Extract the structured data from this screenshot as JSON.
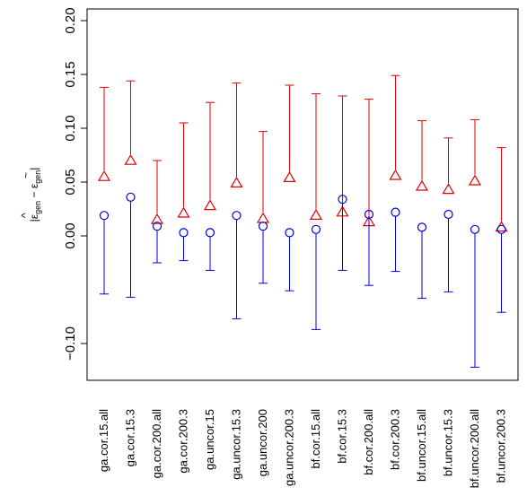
{
  "chart_data": {
    "type": "scatter",
    "title": "",
    "xlabel": "",
    "ylabel": "|ε̂gen − ε̃gen|",
    "ylabel_parts": {
      "open": "|",
      "a": "ε",
      "a_hat": "^",
      "a_sub": "gen",
      "minus": " − ",
      "b": "ε",
      "b_tilde": "~",
      "b_sub": "gen",
      "close": "|"
    },
    "ylim": [
      -0.14,
      0.2
    ],
    "yticks": [
      -0.1,
      0.0,
      0.05,
      0.1,
      0.15,
      0.2
    ],
    "ytick_labels": [
      "−0.10",
      "0.00",
      "0.05",
      "0.10",
      "0.15",
      "0.20"
    ],
    "grid": false,
    "categories": [
      "ga.cor.15.all",
      "ga.cor.15.3",
      "ga.cor.200.all",
      "ga.cor.200.3",
      "ga.uncor.15",
      "ga.uncor.15.3",
      "ga.uncor.200",
      "ga.uncor.200.3",
      "bf.cor.15.all",
      "bf.cor.15.3",
      "bf.cor.200.all",
      "bf.cor.200.3",
      "bf.uncor.15.all",
      "bf.uncor.15.3",
      "bf.uncor.200.all",
      "bf.uncor.200.3"
    ],
    "series": [
      {
        "marker": "triangle",
        "color": "#e00000",
        "values": [
          0.055,
          0.07,
          0.015,
          0.021,
          0.028,
          0.049,
          0.016,
          0.054,
          0.019,
          0.022,
          0.013,
          0.056,
          0.046,
          0.043,
          0.051,
          0.008
        ],
        "upper": [
          0.138,
          0.144,
          0.07,
          0.105,
          0.124,
          0.142,
          0.097,
          0.14,
          0.132,
          0.13,
          0.127,
          0.149,
          0.107,
          0.091,
          0.108,
          0.082
        ]
      },
      {
        "marker": "circle",
        "color": "#0000e0",
        "values": [
          0.019,
          0.036,
          0.009,
          0.003,
          0.003,
          0.019,
          0.009,
          0.003,
          0.006,
          0.034,
          0.02,
          0.022,
          0.008,
          0.02,
          0.006,
          0.006
        ],
        "lower": [
          -0.054,
          -0.057,
          -0.025,
          -0.023,
          -0.032,
          -0.077,
          -0.044,
          -0.051,
          -0.087,
          -0.032,
          -0.046,
          -0.033,
          -0.058,
          -0.052,
          -0.122,
          -0.071
        ]
      }
    ]
  }
}
